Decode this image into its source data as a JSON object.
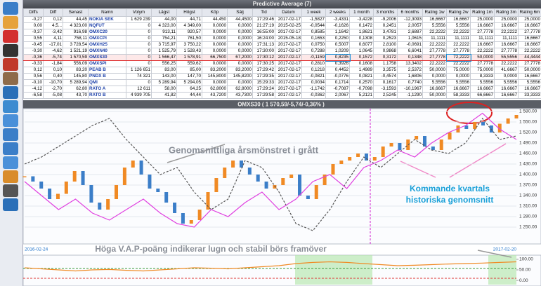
{
  "window_title": "Predictive Average (7)",
  "table": {
    "headers": [
      "Diffs",
      "Diff",
      "Senast",
      "Namn",
      "Volym",
      "Lägst",
      "Högst",
      "Köp",
      "Sälj",
      "Tid",
      "Datum",
      "1 week",
      "2 weeks",
      "1 month",
      "3 months",
      "6 months",
      "Rating 1w",
      "Rating 2w",
      "Rating 1m",
      "Rating 3m",
      "Rating 6m"
    ],
    "rows": [
      [
        "-0,27",
        "0,12",
        "44,45",
        "NOKIA SEK",
        "1 629 239",
        "44,00",
        "44,71",
        "44,450",
        "44,4500",
        "17:29:46",
        "2017-02-17",
        "-1,5827",
        "-3,4331",
        "-3,4228",
        "-9,2006",
        "-12,3093",
        "16,6667",
        "16,6667",
        "25,0000",
        "25,0000",
        "25,0000"
      ],
      [
        "0,00",
        "4,5...",
        "4 323,00",
        "NQFUT",
        "0",
        "4 323,00",
        "4 349,00",
        "0,0000",
        "0,0000",
        "21:27:19",
        "2015-02-25",
        "-0,0544",
        "-0,1626",
        "0,1472",
        "0,2451",
        "2,0057",
        "5,5556",
        "5,5556",
        "16,6667",
        "16,6667",
        "16,6667"
      ],
      [
        "-0,37",
        "-3,42",
        "916,98",
        "OMXC20",
        "0",
        "913,11",
        "920,57",
        "0,0000",
        "0,0000",
        "16:55:00",
        "2017-02-17",
        "0,8585",
        "1,1642",
        "1,8621",
        "3,4781",
        "2,6887",
        "22,2222",
        "22,2222",
        "27,7778",
        "22,2222",
        "27,7778"
      ],
      [
        "0,55",
        "4,11",
        "758,11",
        "OMXCPI",
        "0",
        "754,21",
        "761,50",
        "0,0000",
        "0,0000",
        "16:24:00",
        "2015-05-18",
        "0,1653",
        "0,2250",
        "0,1308",
        "0,2523",
        "1,0615",
        "11,1111",
        "11,1111",
        "11,1111",
        "11,1111",
        "16,6667"
      ],
      [
        "-0,45",
        "-17,01",
        "3 728,54",
        "OMXH25",
        "0",
        "3 715,97",
        "3 750,22",
        "0,0000",
        "0,0000",
        "17:31:13",
        "2017-02-17",
        "0,0750",
        "0,5007",
        "0,6077",
        "2,8100",
        "-0,0691",
        "22,2222",
        "22,2222",
        "16,6667",
        "16,6667",
        "16,6667"
      ],
      [
        "-0,30",
        "-4,62",
        "1 521,19",
        "OMXN40",
        "0",
        "1 525,79",
        "1 528,43",
        "0,0000",
        "0,0000",
        "17:30:00",
        "2017-02-17",
        "0,7288",
        "1,0209",
        "1,0645",
        "0,9868",
        "6,6041",
        "27,7778",
        "27,7778",
        "22,2222",
        "27,7778",
        "22,2222"
      ],
      [
        "-0,36",
        "-5,74",
        "1 570,59",
        "OMXS30",
        "0",
        "1 566,47",
        "1 578,91",
        "66,7500",
        "67,2000",
        "17:30:12",
        "2017-02-17",
        "-0,1159",
        "0,8235",
        "0,1572",
        "0,3172",
        "0,1348",
        "27,7778",
        "72,2222",
        "50,0000",
        "55,5556",
        "44,4444"
      ],
      [
        "-0,33",
        "-1,84",
        "556,09",
        "OMXSPI",
        "0",
        "556,25",
        "559,62",
        "0,0000",
        "0,0000",
        "17:30:25",
        "2017-02-17",
        "0,2810",
        "0,3926",
        "0,1608",
        "1,1758",
        "13,3402",
        "22,2222",
        "22,2222",
        "27,7778",
        "22,2222",
        "27,7778"
      ],
      [
        "0,12",
        "0,10",
        "83,20",
        "PEAB B",
        "1 126 651",
        "83,00",
        "85,00",
        "83,2000",
        "83,2000",
        "17:29:42",
        "2017-02-17",
        "0,1218",
        "0,4452",
        "1,4989",
        "3,3575",
        "2,5372",
        "50,0000",
        "75,0000",
        "75,0000",
        "41,6667",
        "50,0000"
      ],
      [
        "0,56",
        "0,40",
        "145,80",
        "PNDX B",
        "74 321",
        "143,00",
        "147,70",
        "145,8000",
        "145,8200",
        "17:29:35",
        "2017-02-17",
        "-0,0821",
        "-0,0776",
        "0,0821",
        "-0,4574",
        "1,6806",
        "0,0000",
        "0,0000",
        "8,3333",
        "0,0000",
        "16,6667"
      ],
      [
        "-0,10",
        "-10,70",
        "5 289,94",
        "QMI",
        "0",
        "5 289,94",
        "5 294,05",
        "0,0000",
        "0,0000",
        "15:29:33",
        "2017-02-17",
        "0,0034",
        "0,1714",
        "0,2570",
        "0,1617",
        "0,7740",
        "5,5556",
        "5,5556",
        "5,5556",
        "5,5556",
        "5,5556"
      ],
      [
        "-4,12",
        "-2,70",
        "62,80",
        "RATO A",
        "12 611",
        "58,00",
        "64,25",
        "62,8000",
        "62,8000",
        "17:29:24",
        "2017-02-17",
        "-1,1742",
        "-0,7087",
        "-0,7098",
        "-3,1593",
        "-10,1967",
        "16,6667",
        "16,6667",
        "16,6667",
        "16,6667",
        "16,6667"
      ],
      [
        "-6,58",
        "-5,08",
        "43,70",
        "RATO B",
        "4 939 705",
        "41,82",
        "44,44",
        "43,7200",
        "43,7300",
        "17:29:58",
        "2017-02-17",
        "-0,0362",
        "2,0067",
        "5,2121",
        "2,5245",
        "-1,1290",
        "50,0000",
        "58,3333",
        "66,6667",
        "16,6667",
        "33,3333"
      ]
    ]
  },
  "chart_data": [
    {
      "type": "line",
      "title": "OMXS30 ( 1 570,59/-5,74/-0,36% )",
      "ylim": [
        1208,
        1588
      ],
      "yticks": [
        {
          "value": 1580,
          "label": "1 580.00"
        },
        {
          "value": 1550,
          "label": "1 550.00"
        },
        {
          "value": 1520,
          "label": "1 520.00"
        },
        {
          "value": 1490,
          "label": "1 490.00"
        },
        {
          "value": 1460,
          "label": "1 460.00"
        },
        {
          "value": 1430,
          "label": "1 430.00"
        },
        {
          "value": 1400,
          "label": "1 400.00"
        },
        {
          "value": 1370,
          "label": "1 370.00"
        },
        {
          "value": 1340,
          "label": "1 340.00"
        },
        {
          "value": 1310,
          "label": "1 310.00"
        },
        {
          "value": 1280,
          "label": "1 280.00"
        },
        {
          "value": 1250,
          "label": "1 250.00"
        }
      ],
      "grid": true,
      "date_labels": [
        "2016-02-24",
        "2017-02-20"
      ],
      "annotations": [
        "Genomsnittliga årsmönstret i grått",
        "Kommande kvartals",
        "historiska genomsnitt"
      ],
      "series": [
        {
          "style": "bars",
          "color": "#3b7ec8",
          "up_color": "#f08a24",
          "values": [
            1395,
            1380,
            1360,
            1330,
            1345,
            1380,
            1410,
            1370,
            1320,
            1300,
            1330,
            1370,
            1420,
            1440,
            1400,
            1360,
            1350,
            1320,
            1290,
            1260,
            1270,
            1300,
            1350,
            1390,
            1420,
            1440,
            1420,
            1400,
            1380,
            1360,
            1370,
            1390,
            1400,
            1340,
            1330,
            1370,
            1400,
            1430,
            1440,
            1450,
            1460,
            1440,
            1450,
            1480,
            1490,
            1470,
            1500,
            1510,
            1480,
            1470,
            1500,
            1520,
            1540,
            1530,
            1550,
            1540,
            1520,
            1545,
            1560,
            1570
          ]
        },
        {
          "style": "dashed",
          "color": "#555555",
          "values": [
            1430,
            1450,
            1480,
            1510,
            1540,
            1560,
            1500,
            1450,
            1400,
            1420,
            1350,
            1300,
            1330,
            1440,
            1420,
            1350,
            1260,
            1240,
            1300,
            1380,
            1450,
            1420,
            1460,
            1500,
            1470,
            1460,
            1490,
            1560,
            1500,
            1510
          ]
        },
        {
          "style": "solid",
          "color": "#e040e0",
          "values": [
            1380,
            1340,
            1300,
            1330,
            1290,
            1270,
            1300,
            1330,
            1290,
            1260,
            1250,
            1300,
            1280,
            1320,
            1350,
            1300,
            1330,
            1380,
            1400,
            1360,
            1420,
            1440,
            1470,
            1450,
            1490,
            1520,
            1540,
            1575,
            1530,
            1500
          ]
        }
      ]
    },
    {
      "type": "line",
      "title": "Höga V.A.P-poäng indikerar lugn och stabil börs framöver",
      "ylim": [
        -13,
        113
      ],
      "yticks": [
        {
          "value": 100,
          "label": "100.00"
        },
        {
          "value": 50,
          "label": "50.00"
        },
        {
          "value": 0,
          "label": "0.00"
        }
      ],
      "series": [
        {
          "style": "solid",
          "color": "#f08a24",
          "values": [
            60,
            55,
            50,
            45,
            50,
            52,
            48,
            45,
            50,
            55,
            60,
            58,
            55,
            60,
            65,
            70,
            80,
            85,
            88,
            85,
            80,
            75,
            70,
            72,
            75,
            78,
            80,
            82,
            85,
            88
          ]
        }
      ]
    }
  ]
}
